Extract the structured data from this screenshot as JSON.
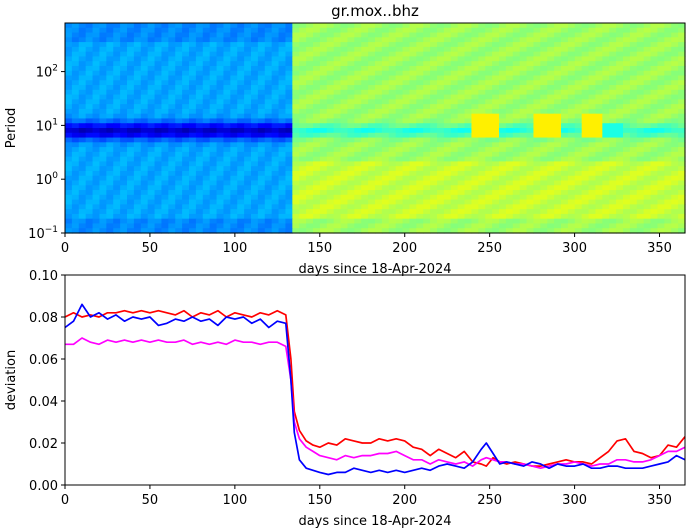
{
  "chart_data": [
    {
      "type": "heatmap",
      "title": "gr.mox..bhz",
      "xlabel": "days since 18-Apr-2024",
      "ylabel": "Period",
      "xlim": [
        0,
        365
      ],
      "ylim": [
        0.1,
        800
      ],
      "yscale": "log",
      "xticks": [
        0,
        50,
        100,
        150,
        200,
        250,
        300,
        350
      ],
      "yticks": [
        {
          "value": 0.1,
          "label": "10",
          "exp": "−1"
        },
        {
          "value": 1,
          "label": "10",
          "exp": "0"
        },
        {
          "value": 10,
          "label": "10",
          "exp": "1"
        },
        {
          "value": 100,
          "label": "10",
          "exp": "2"
        }
      ],
      "colormap": "jet",
      "change_day": 134
    },
    {
      "type": "line",
      "xlabel": "days since 18-Apr-2024",
      "ylabel": "deviation",
      "xlim": [
        0,
        365
      ],
      "ylim": [
        0,
        0.1
      ],
      "xticks": [
        0,
        50,
        100,
        150,
        200,
        250,
        300,
        350
      ],
      "yticks": [
        "0.00",
        "0.02",
        "0.04",
        "0.06",
        "0.08",
        "0.10"
      ],
      "x": [
        0,
        5,
        10,
        15,
        20,
        25,
        30,
        35,
        40,
        45,
        50,
        55,
        60,
        65,
        70,
        75,
        80,
        85,
        90,
        95,
        100,
        105,
        110,
        115,
        120,
        125,
        130,
        133,
        135,
        138,
        142,
        146,
        150,
        155,
        160,
        165,
        170,
        175,
        180,
        185,
        190,
        195,
        200,
        205,
        210,
        215,
        220,
        225,
        230,
        235,
        240,
        245,
        248,
        252,
        256,
        260,
        265,
        270,
        275,
        280,
        285,
        290,
        295,
        300,
        305,
        310,
        315,
        320,
        325,
        330,
        335,
        340,
        345,
        350,
        355,
        360,
        365
      ],
      "series": [
        {
          "color": "#ff0000",
          "values": [
            0.08,
            0.082,
            0.08,
            0.081,
            0.08,
            0.082,
            0.082,
            0.083,
            0.082,
            0.083,
            0.082,
            0.083,
            0.082,
            0.081,
            0.083,
            0.08,
            0.082,
            0.081,
            0.083,
            0.08,
            0.082,
            0.081,
            0.08,
            0.082,
            0.081,
            0.083,
            0.081,
            0.06,
            0.035,
            0.026,
            0.021,
            0.019,
            0.018,
            0.02,
            0.019,
            0.022,
            0.021,
            0.02,
            0.02,
            0.022,
            0.021,
            0.022,
            0.021,
            0.018,
            0.017,
            0.014,
            0.017,
            0.015,
            0.013,
            0.016,
            0.011,
            0.01,
            0.009,
            0.013,
            0.011,
            0.01,
            0.011,
            0.01,
            0.009,
            0.009,
            0.01,
            0.011,
            0.012,
            0.011,
            0.011,
            0.01,
            0.013,
            0.016,
            0.021,
            0.022,
            0.016,
            0.015,
            0.013,
            0.014,
            0.019,
            0.018,
            0.023
          ]
        },
        {
          "color": "#ff00ff",
          "values": [
            0.067,
            0.067,
            0.07,
            0.068,
            0.067,
            0.069,
            0.068,
            0.069,
            0.068,
            0.069,
            0.068,
            0.069,
            0.068,
            0.068,
            0.069,
            0.067,
            0.068,
            0.067,
            0.068,
            0.067,
            0.069,
            0.068,
            0.068,
            0.067,
            0.068,
            0.068,
            0.066,
            0.05,
            0.03,
            0.022,
            0.018,
            0.016,
            0.014,
            0.013,
            0.012,
            0.014,
            0.013,
            0.014,
            0.014,
            0.015,
            0.015,
            0.016,
            0.014,
            0.012,
            0.012,
            0.01,
            0.012,
            0.011,
            0.01,
            0.011,
            0.009,
            0.012,
            0.013,
            0.012,
            0.011,
            0.011,
            0.01,
            0.01,
            0.009,
            0.008,
            0.009,
            0.01,
            0.01,
            0.011,
            0.01,
            0.009,
            0.01,
            0.01,
            0.012,
            0.012,
            0.011,
            0.011,
            0.012,
            0.014,
            0.016,
            0.016,
            0.018
          ]
        },
        {
          "color": "#0000ff",
          "values": [
            0.075,
            0.078,
            0.086,
            0.08,
            0.082,
            0.079,
            0.081,
            0.078,
            0.08,
            0.079,
            0.08,
            0.076,
            0.077,
            0.079,
            0.078,
            0.08,
            0.078,
            0.079,
            0.076,
            0.08,
            0.079,
            0.08,
            0.077,
            0.079,
            0.075,
            0.078,
            0.077,
            0.05,
            0.025,
            0.012,
            0.008,
            0.007,
            0.006,
            0.005,
            0.006,
            0.006,
            0.008,
            0.007,
            0.006,
            0.007,
            0.006,
            0.007,
            0.006,
            0.007,
            0.008,
            0.007,
            0.009,
            0.01,
            0.009,
            0.008,
            0.011,
            0.017,
            0.02,
            0.015,
            0.01,
            0.011,
            0.01,
            0.009,
            0.011,
            0.01,
            0.008,
            0.01,
            0.009,
            0.009,
            0.01,
            0.008,
            0.008,
            0.009,
            0.009,
            0.008,
            0.008,
            0.008,
            0.009,
            0.01,
            0.011,
            0.014,
            0.012
          ]
        }
      ]
    }
  ]
}
